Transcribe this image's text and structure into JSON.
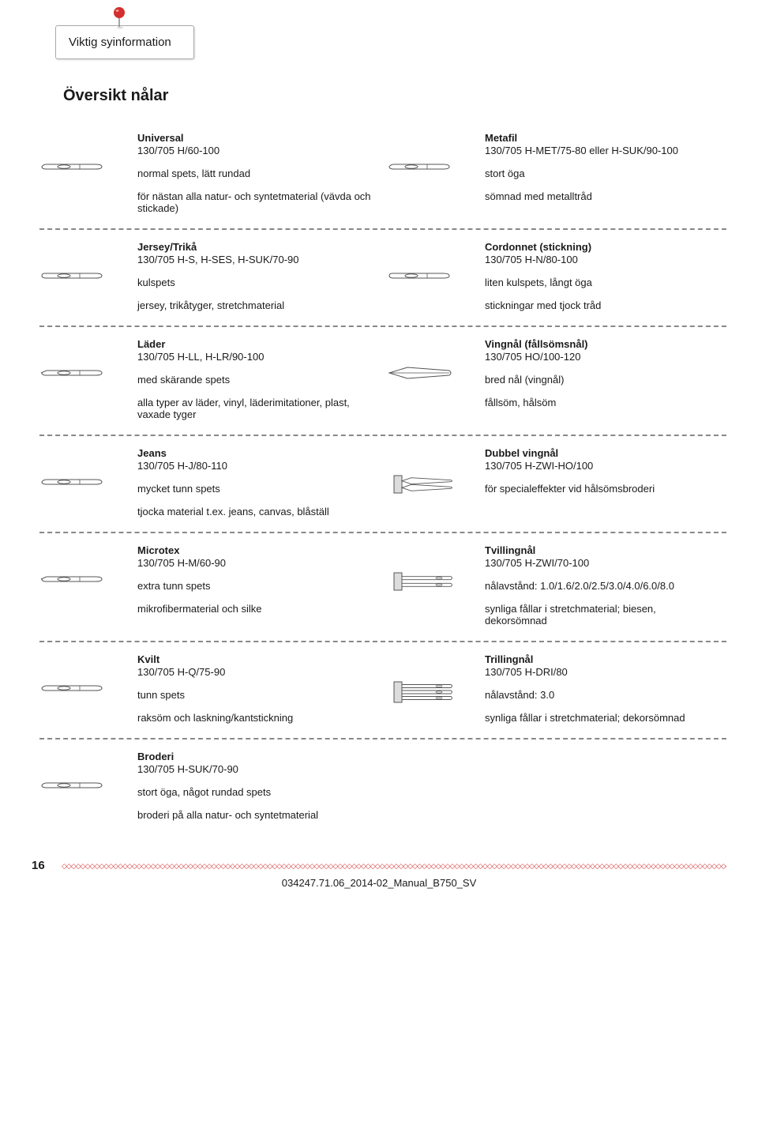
{
  "colors": {
    "text": "#1a1a1a",
    "dash": "#888888",
    "accent": "#d42e2e",
    "needle_stroke": "#555555",
    "needle_fill": "#ffffff",
    "pin_head": "#d42e2e",
    "pin_shadow": "#999999"
  },
  "note_label": "Viktig syinformation",
  "overview_title": "Översikt nålar",
  "page_number": "16",
  "doc_id": "034247.71.06_2014-02_Manual_B750_SV",
  "rows": [
    {
      "left": {
        "icon": "universal",
        "title": "Universal",
        "sub": "130/705 H/60-100",
        "tip": "normal spets, lätt rundad",
        "use": "för nästan alla natur- och syntetmaterial (vävda och stickade)"
      },
      "right": {
        "icon": "universal",
        "title": "Metafil",
        "sub": "130/705 H-MET/75-80 eller H-SUK/90-100",
        "tip": "stort öga",
        "use": "sömnad med metalltråd"
      }
    },
    {
      "left": {
        "icon": "ball",
        "title": "Jersey/Trikå",
        "sub": "130/705 H-S, H-SES, H-SUK/70-90",
        "tip": "kulspets",
        "use": "jersey, trikåtyger, stretchmaterial"
      },
      "right": {
        "icon": "ball",
        "title": "Cordonnet (stickning)",
        "sub": "130/705 H-N/80-100",
        "tip": "liten kulspets, långt öga",
        "use": "stickningar med tjock tråd"
      }
    },
    {
      "left": {
        "icon": "sharp",
        "title": "Läder",
        "sub": "130/705 H-LL, H-LR/90-100",
        "tip": "med skärande spets",
        "use": "alla typer av läder, vinyl, läderimitationer, plast, vaxade tyger"
      },
      "right": {
        "icon": "wing",
        "title": "Vingnål (fållsömsnål)",
        "sub": "130/705 HO/100-120",
        "tip": "bred nål (vingnål)",
        "use": "fållsöm, hålsöm"
      }
    },
    {
      "left": {
        "icon": "universal",
        "title": "Jeans",
        "sub": "130/705 H-J/80-110",
        "tip": "mycket tunn spets",
        "use": "tjocka material t.ex. jeans, canvas, blåställ"
      },
      "right": {
        "icon": "double-wing",
        "title": "Dubbel vingnål",
        "sub": "130/705 H-ZWI-HO/100",
        "tip": "",
        "use": "för specialeffekter vid hålsömsbroderi"
      }
    },
    {
      "left": {
        "icon": "sharp",
        "title": "Microtex",
        "sub": "130/705 H-M/60-90",
        "tip": "extra tunn spets",
        "use": "mikrofibermaterial och silke"
      },
      "right": {
        "icon": "twin",
        "title": "Tvillingnål",
        "sub": "130/705 H-ZWI/70-100",
        "tip": "nålavstånd: 1.0/1.6/2.0/2.5/3.0/4.0/6.0/8.0",
        "use": "synliga fållar i stretchmaterial; biesen, dekorsömnad"
      }
    },
    {
      "left": {
        "icon": "universal",
        "title": "Kvilt",
        "sub": "130/705 H-Q/75-90",
        "tip": "tunn spets",
        "use": "raksöm och laskning/kantstickning"
      },
      "right": {
        "icon": "triple",
        "title": "Trillingnål",
        "sub": "130/705 H-DRI/80",
        "tip": "nålavstånd: 3.0",
        "use": "synliga fållar i stretchmaterial; dekorsömnad"
      }
    },
    {
      "left": {
        "icon": "universal",
        "title": "Broderi",
        "sub": "130/705 H-SUK/70-90",
        "tip": "stort öga, något rundad spets",
        "use": "broderi på alla natur- och syntetmaterial"
      },
      "right": null
    }
  ]
}
